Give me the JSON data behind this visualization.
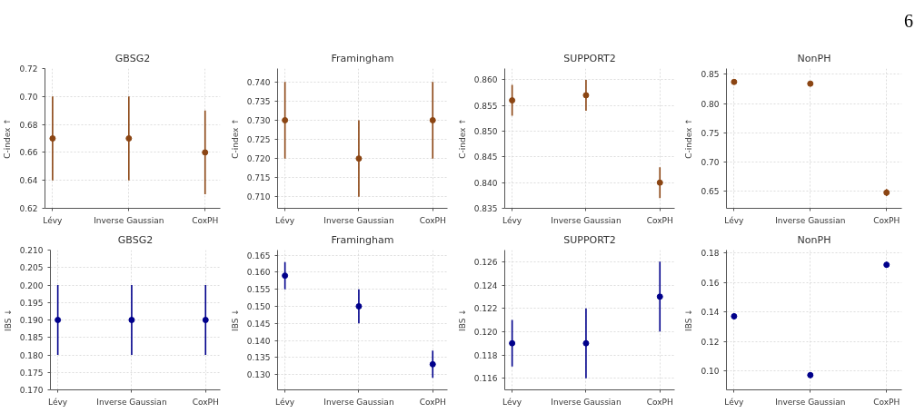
{
  "chart_data": [
    {
      "type": "scatter",
      "title": "GBSG2",
      "ylabel": "C-index ↑",
      "categories": [
        "Lévy",
        "Inverse Gaussian",
        "CoxPH"
      ],
      "series": [
        {
          "color": "#8b4513",
          "values": [
            0.67,
            0.67,
            0.66
          ],
          "errors": [
            0.03,
            0.03,
            0.03
          ]
        }
      ],
      "ylim": [
        0.62,
        0.72
      ],
      "yticks": [
        {
          "value": 0.62,
          "label": "0.62"
        },
        {
          "value": 0.64,
          "label": "0.64"
        },
        {
          "value": 0.66,
          "label": "0.66"
        },
        {
          "value": 0.68,
          "label": "0.68"
        },
        {
          "value": 0.7,
          "label": "0.70"
        },
        {
          "value": 0.72,
          "label": "0.72"
        }
      ],
      "grid": true,
      "marker": "circle"
    },
    {
      "type": "scatter",
      "title": "Framingham",
      "ylabel": "C-index ↑",
      "categories": [
        "Lévy",
        "Inverse Gaussian",
        "CoxPH"
      ],
      "series": [
        {
          "color": "#8b4513",
          "values": [
            0.73,
            0.72,
            0.73
          ],
          "errors": [
            0.01,
            0.01,
            0.01
          ]
        }
      ],
      "ylim": [
        0.707,
        0.7435
      ],
      "yticks": [
        {
          "value": 0.71,
          "label": "0.710"
        },
        {
          "value": 0.715,
          "label": "0.715"
        },
        {
          "value": 0.72,
          "label": "0.720"
        },
        {
          "value": 0.725,
          "label": "0.725"
        },
        {
          "value": 0.73,
          "label": "0.730"
        },
        {
          "value": 0.735,
          "label": "0.735"
        },
        {
          "value": 0.74,
          "label": "0.740"
        }
      ],
      "grid": true,
      "marker": "circle"
    },
    {
      "type": "scatter",
      "title": "SUPPORT2",
      "ylabel": "C-index ↑",
      "categories": [
        "Lévy",
        "Inverse Gaussian",
        "CoxPH"
      ],
      "series": [
        {
          "color": "#8b4513",
          "values": [
            0.856,
            0.857,
            0.84
          ],
          "errors": [
            0.003,
            0.003,
            0.003
          ]
        }
      ],
      "ylim": [
        0.835,
        0.8622
      ],
      "yticks": [
        {
          "value": 0.835,
          "label": "0.835"
        },
        {
          "value": 0.84,
          "label": "0.840"
        },
        {
          "value": 0.845,
          "label": "0.845"
        },
        {
          "value": 0.85,
          "label": "0.850"
        },
        {
          "value": 0.855,
          "label": "0.855"
        },
        {
          "value": 0.86,
          "label": "0.860"
        }
      ],
      "grid": true,
      "marker": "circle"
    },
    {
      "type": "scatter",
      "title": "NonPH",
      "ylabel": "C-index ↑",
      "annotations": [
        "6"
      ],
      "categories": [
        "Lévy",
        "Inverse Gaussian",
        "CoxPH"
      ],
      "series": [
        {
          "color": "#8b4513",
          "values": [
            0.837,
            0.834,
            0.647
          ],
          "errors": [
            0.003,
            0.003,
            0.006
          ]
        }
      ],
      "ylim": [
        0.62,
        0.86
      ],
      "yticks": [
        {
          "value": 0.65,
          "label": "0.65"
        },
        {
          "value": 0.7,
          "label": "0.70"
        },
        {
          "value": 0.75,
          "label": "0.75"
        },
        {
          "value": 0.8,
          "label": "0.80"
        },
        {
          "value": 0.85,
          "label": "0.85"
        }
      ],
      "grid": true,
      "marker": "circle"
    },
    {
      "type": "scatter",
      "title": "GBSG2",
      "ylabel": "IBS ↓",
      "categories": [
        "Lévy",
        "Inverse Gaussian",
        "CoxPH"
      ],
      "series": [
        {
          "color": "#00008b",
          "values": [
            0.19,
            0.19,
            0.19
          ],
          "errors": [
            0.01,
            0.01,
            0.01
          ]
        }
      ],
      "ylim": [
        0.17,
        0.21
      ],
      "yticks": [
        {
          "value": 0.17,
          "label": "0.170"
        },
        {
          "value": 0.175,
          "label": "0.175"
        },
        {
          "value": 0.18,
          "label": "0.180"
        },
        {
          "value": 0.185,
          "label": "0.185"
        },
        {
          "value": 0.19,
          "label": "0.190"
        },
        {
          "value": 0.195,
          "label": "0.195"
        },
        {
          "value": 0.2,
          "label": "0.200"
        },
        {
          "value": 0.205,
          "label": "0.205"
        },
        {
          "value": 0.21,
          "label": "0.210"
        }
      ],
      "grid": true,
      "marker": "circle"
    },
    {
      "type": "scatter",
      "title": "Framingham",
      "ylabel": "IBS ↓",
      "categories": [
        "Lévy",
        "Inverse Gaussian",
        "CoxPH"
      ],
      "series": [
        {
          "color": "#00008b",
          "values": [
            0.159,
            0.15,
            0.133
          ],
          "errors": [
            0.004,
            0.005,
            0.004
          ]
        }
      ],
      "ylim": [
        0.1255,
        0.1665
      ],
      "yticks": [
        {
          "value": 0.13,
          "label": "0.130"
        },
        {
          "value": 0.135,
          "label": "0.135"
        },
        {
          "value": 0.14,
          "label": "0.140"
        },
        {
          "value": 0.145,
          "label": "0.145"
        },
        {
          "value": 0.15,
          "label": "0.150"
        },
        {
          "value": 0.155,
          "label": "0.155"
        },
        {
          "value": 0.16,
          "label": "0.160"
        },
        {
          "value": 0.165,
          "label": "0.165"
        }
      ],
      "grid": true,
      "marker": "circle"
    },
    {
      "type": "scatter",
      "title": "SUPPORT2",
      "ylabel": "IBS ↓",
      "categories": [
        "Lévy",
        "Inverse Gaussian",
        "CoxPH"
      ],
      "series": [
        {
          "color": "#00008b",
          "values": [
            0.119,
            0.119,
            0.123
          ],
          "errors": [
            0.002,
            0.003,
            0.003
          ]
        }
      ],
      "ylim": [
        0.115,
        0.127
      ],
      "yticks": [
        {
          "value": 0.116,
          "label": "0.116"
        },
        {
          "value": 0.118,
          "label": "0.118"
        },
        {
          "value": 0.12,
          "label": "0.120"
        },
        {
          "value": 0.122,
          "label": "0.122"
        },
        {
          "value": 0.124,
          "label": "0.124"
        },
        {
          "value": 0.126,
          "label": "0.126"
        }
      ],
      "grid": true,
      "marker": "circle"
    },
    {
      "type": "scatter",
      "title": "NonPH",
      "ylabel": "IBS ↓",
      "categories": [
        "Lévy",
        "Inverse Gaussian",
        "CoxPH"
      ],
      "series": [
        {
          "color": "#00008b",
          "values": [
            0.137,
            0.097,
            0.172
          ],
          "errors": [
            0.002,
            0.002,
            0.002
          ]
        }
      ],
      "ylim": [
        0.087,
        0.182
      ],
      "yticks": [
        {
          "value": 0.1,
          "label": "0.10"
        },
        {
          "value": 0.12,
          "label": "0.12"
        },
        {
          "value": 0.14,
          "label": "0.14"
        },
        {
          "value": 0.16,
          "label": "0.16"
        },
        {
          "value": 0.18,
          "label": "0.18"
        }
      ],
      "grid": true,
      "marker": "circle"
    }
  ]
}
